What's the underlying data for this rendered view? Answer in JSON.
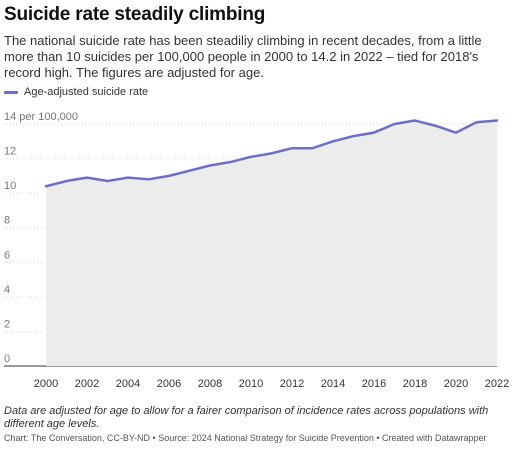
{
  "title": "Suicide rate steadily climbing",
  "subtitle": "The national suicide rate has been steadiliy climbing in recent decades, from a little more than 10 suicides per 100,000 people in 2000 to 14.2 in 2022 – tied for 2018's record high. The figures are adjusted for age.",
  "note": "Data are adjusted for age to allow for a fairer comparison of incidence rates across populations with different age levels.",
  "credit": "Chart: The Conversation, CC-BY-ND • Source: 2024 National Strategy for Suicide Prevention • Created with Datawrapper",
  "colors": {
    "line": "#6b6fc8",
    "area": "#ececec",
    "grid": "#dcdcdc",
    "axis": "#333333"
  },
  "chart_data": {
    "type": "line",
    "legend": "top-left",
    "grid": true,
    "xlim": [
      2000,
      2022
    ],
    "ylim": [
      0,
      14
    ],
    "x_ticks": [
      "2000",
      "2002",
      "2004",
      "2006",
      "2008",
      "2010",
      "2012",
      "2014",
      "2016",
      "2018",
      "2020",
      "2022"
    ],
    "y_ticks": [
      {
        "value": 0,
        "label": "0"
      },
      {
        "value": 2,
        "label": "2"
      },
      {
        "value": 4,
        "label": "4"
      },
      {
        "value": 6,
        "label": "6"
      },
      {
        "value": 8,
        "label": "8"
      },
      {
        "value": 10,
        "label": "10"
      },
      {
        "value": 12,
        "label": "12"
      },
      {
        "value": 14,
        "label": "14 per 100,000"
      }
    ],
    "x": [
      2000,
      2001,
      2002,
      2003,
      2004,
      2005,
      2006,
      2007,
      2008,
      2009,
      2010,
      2011,
      2012,
      2013,
      2014,
      2015,
      2016,
      2017,
      2018,
      2019,
      2020,
      2021,
      2022
    ],
    "series": [
      {
        "name": "Age-adjusted suicide rate",
        "values": [
          10.4,
          10.7,
          10.9,
          10.7,
          10.9,
          10.8,
          11.0,
          11.3,
          11.6,
          11.8,
          12.1,
          12.3,
          12.6,
          12.6,
          13.0,
          13.3,
          13.5,
          14.0,
          14.2,
          13.9,
          13.5,
          14.1,
          14.2
        ]
      }
    ]
  }
}
